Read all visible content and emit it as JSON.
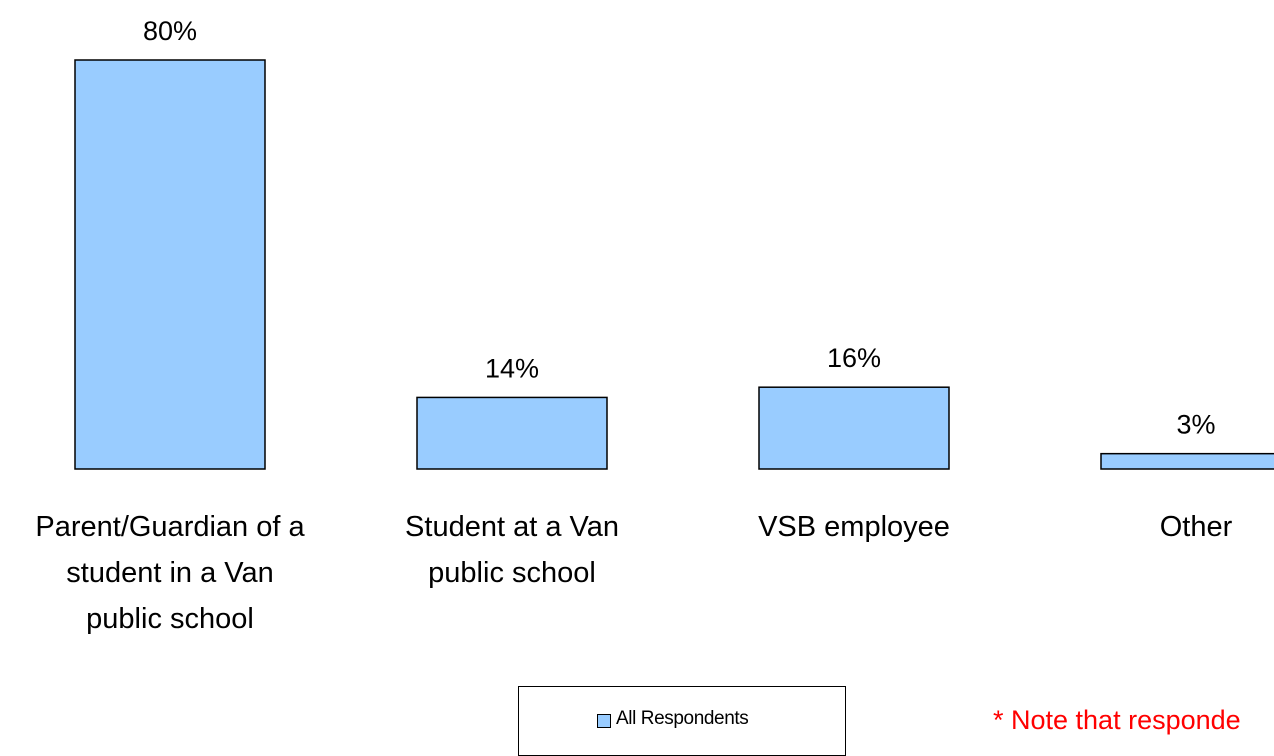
{
  "chart_data": {
    "type": "bar",
    "categories": [
      "Parent/Guardian of a student in a Van public school",
      "Student at a Van public school",
      "VSB employee",
      "Other"
    ],
    "category_label_lines": [
      [
        "Parent/Guardian of a",
        "student in a Van",
        "public school"
      ],
      [
        "Student at a Van",
        "public school"
      ],
      [
        "VSB employee"
      ],
      [
        "Other"
      ]
    ],
    "series": [
      {
        "name": "All Respondents",
        "values": [
          80,
          14,
          16,
          3
        ],
        "data_labels": [
          "80%",
          "14%",
          "16%",
          "3%"
        ]
      }
    ],
    "ylim": [
      0,
      80
    ],
    "grid": false,
    "legend_position": "bottom",
    "bar_color": "#99CCFF",
    "bar_border_color": "#000000"
  },
  "note": {
    "text": "* Note that responde",
    "color": "#FF0000"
  }
}
